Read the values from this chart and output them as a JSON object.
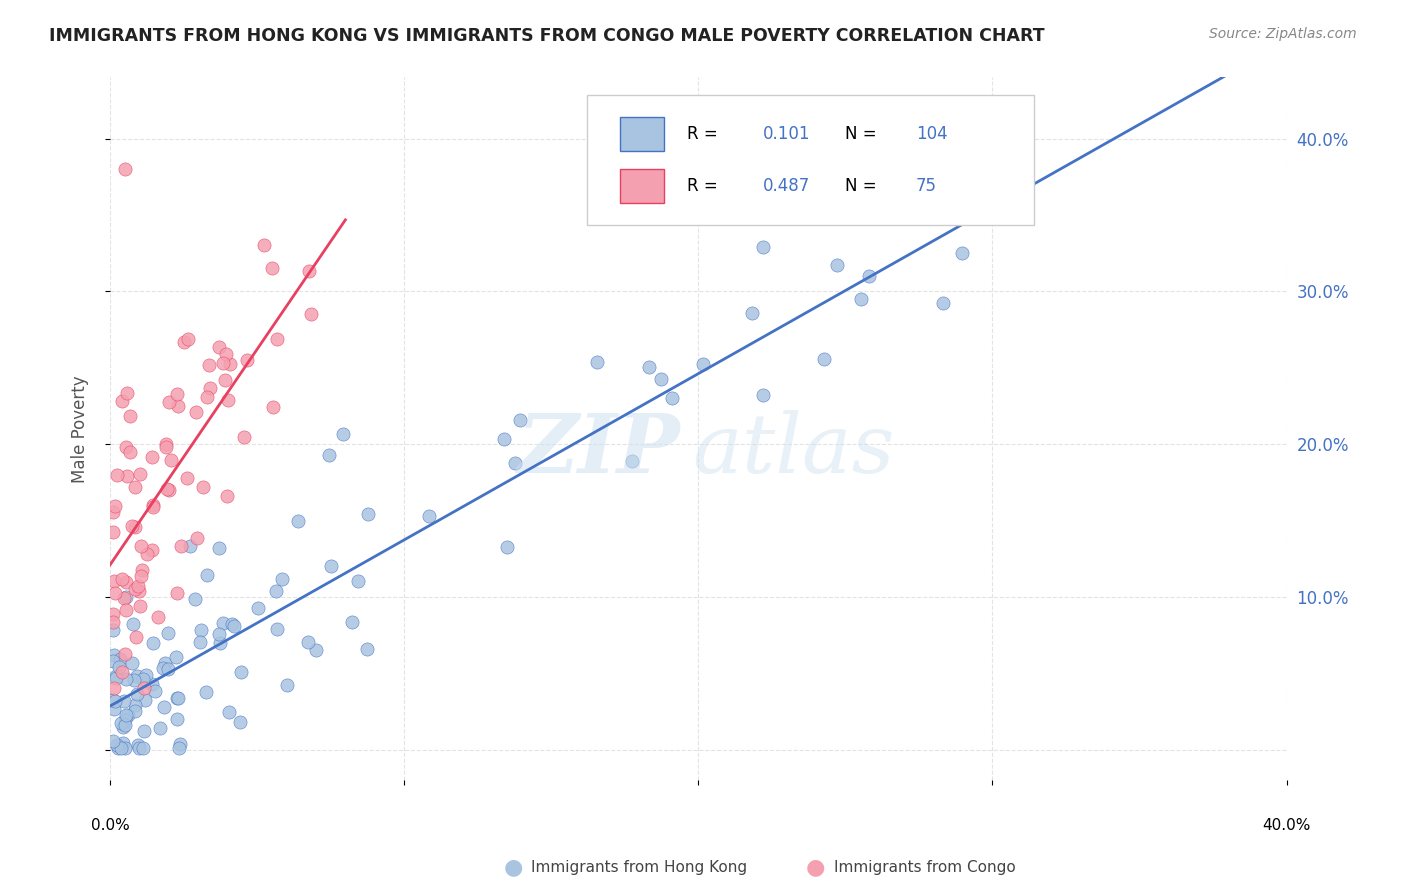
{
  "title": "IMMIGRANTS FROM HONG KONG VS IMMIGRANTS FROM CONGO MALE POVERTY CORRELATION CHART",
  "source": "Source: ZipAtlas.com",
  "ylabel": "Male Poverty",
  "xlim": [
    0.0,
    0.4
  ],
  "ylim": [
    -0.02,
    0.44
  ],
  "legend_r_hk": "0.101",
  "legend_n_hk": "104",
  "legend_r_congo": "0.487",
  "legend_n_congo": "75",
  "color_hk": "#a8c4e0",
  "color_congo": "#f4a0b0",
  "color_hk_line": "#4472c4",
  "color_congo_line": "#e84060",
  "color_text_blue": "#4472c4"
}
